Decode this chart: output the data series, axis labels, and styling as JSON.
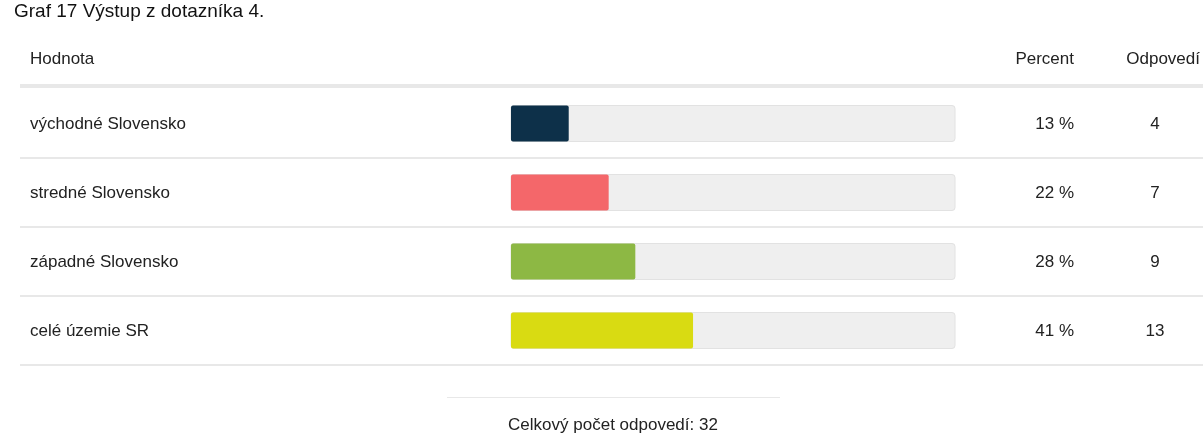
{
  "chart_data": {
    "type": "bar",
    "orientation": "horizontal",
    "title": "Graf 17 Výstup z dotazníka 4.",
    "ylabel": "Hodnota",
    "categories": [
      "východné Slovensko",
      "stredné Slovensko",
      "západné Slovensko",
      "celé územie SR"
    ],
    "values": [
      13,
      22,
      28,
      41
    ],
    "colors": [
      "#0d3049",
      "#f4676a",
      "#8db844",
      "#d9db12"
    ],
    "value_labels": [
      "13 %",
      "22 %",
      "28 %",
      "41 %"
    ],
    "xlim": [
      0,
      100
    ],
    "tick_labels": "y",
    "annotations": [
      "Percent",
      "Odpovedí",
      "4",
      "7",
      "9",
      "13",
      "Celkový počet odpovedí: 32"
    ]
  }
}
